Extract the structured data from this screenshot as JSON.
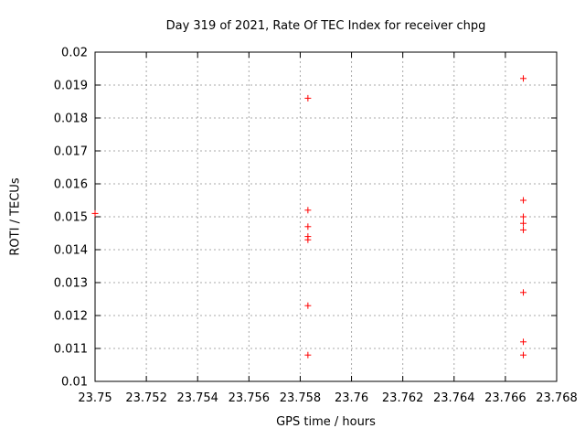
{
  "chart_data": {
    "type": "scatter",
    "title": "Day 319 of 2021, Rate Of TEC Index for receiver chpg",
    "xlabel": "GPS time / hours",
    "ylabel": "ROTI / TECUs",
    "xlim": [
      23.75,
      23.768
    ],
    "ylim": [
      0.01,
      0.02
    ],
    "grid": "dashed",
    "legend_position": "none",
    "marker": "plus",
    "marker_color": "#ff0000",
    "xticks": [
      {
        "v": 23.75,
        "label": "23.75"
      },
      {
        "v": 23.752,
        "label": "23.752"
      },
      {
        "v": 23.754,
        "label": "23.754"
      },
      {
        "v": 23.756,
        "label": "23.756"
      },
      {
        "v": 23.758,
        "label": "23.758"
      },
      {
        "v": 23.76,
        "label": "23.76"
      },
      {
        "v": 23.762,
        "label": "23.762"
      },
      {
        "v": 23.764,
        "label": "23.764"
      },
      {
        "v": 23.766,
        "label": "23.766"
      },
      {
        "v": 23.768,
        "label": "23.768"
      }
    ],
    "yticks": [
      {
        "v": 0.01,
        "label": "0.01"
      },
      {
        "v": 0.011,
        "label": "0.011"
      },
      {
        "v": 0.012,
        "label": "0.012"
      },
      {
        "v": 0.013,
        "label": "0.013"
      },
      {
        "v": 0.014,
        "label": "0.014"
      },
      {
        "v": 0.015,
        "label": "0.015"
      },
      {
        "v": 0.016,
        "label": "0.016"
      },
      {
        "v": 0.017,
        "label": "0.017"
      },
      {
        "v": 0.018,
        "label": "0.018"
      },
      {
        "v": 0.019,
        "label": "0.019"
      },
      {
        "v": 0.02,
        "label": "0.02"
      }
    ],
    "series": [
      {
        "name": "ROTI",
        "points": [
          [
            23.75,
            0.0151
          ],
          [
            23.7583,
            0.0186
          ],
          [
            23.7583,
            0.0152
          ],
          [
            23.7583,
            0.0147
          ],
          [
            23.7583,
            0.0144
          ],
          [
            23.7583,
            0.0143
          ],
          [
            23.7583,
            0.0123
          ],
          [
            23.7583,
            0.0108
          ],
          [
            23.7667,
            0.0192
          ],
          [
            23.7667,
            0.0155
          ],
          [
            23.7667,
            0.015
          ],
          [
            23.7667,
            0.0148
          ],
          [
            23.7667,
            0.0146
          ],
          [
            23.7667,
            0.0127
          ],
          [
            23.7667,
            0.0112
          ],
          [
            23.7667,
            0.0108
          ]
        ]
      }
    ]
  }
}
